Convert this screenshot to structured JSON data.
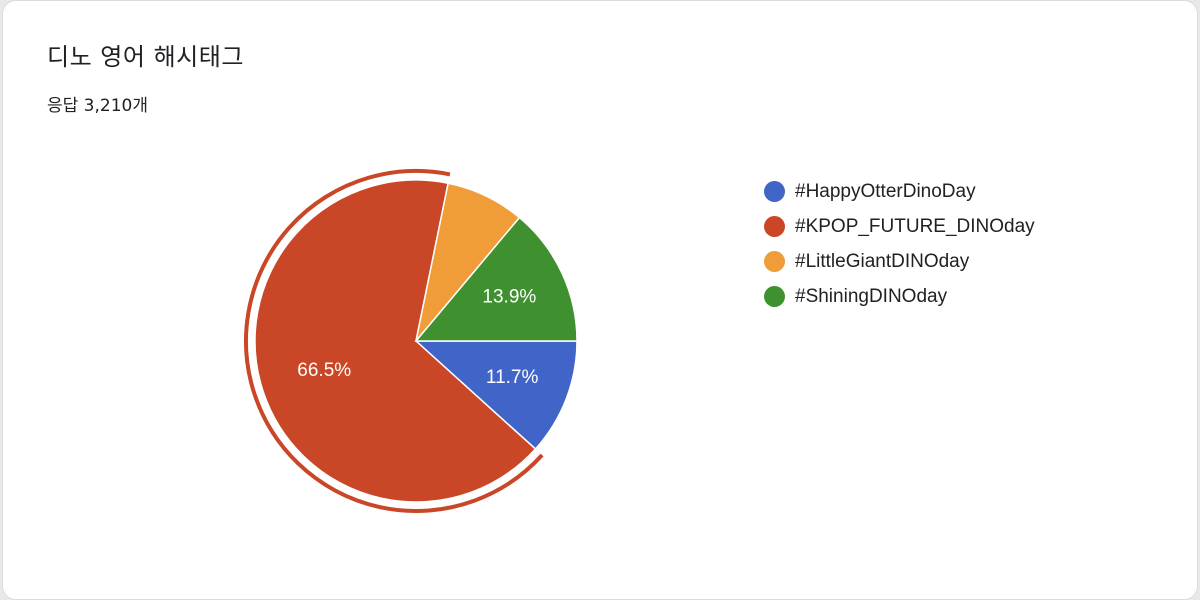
{
  "header": {
    "title": "디노 영어 해시태그",
    "response_count": "응답 3,210개"
  },
  "chart_data": {
    "type": "pie",
    "categories": [
      "#HappyOtterDinoDay",
      "#KPOP_FUTURE_DINOday",
      "#LittleGiantDINOday",
      "#ShiningDINOday"
    ],
    "values": [
      11.7,
      66.5,
      7.9,
      13.9
    ],
    "labels": [
      "11.7%",
      "66.5%",
      "",
      "13.9%"
    ],
    "colors": [
      "#4064c8",
      "#c94727",
      "#f09c38",
      "#3f9130"
    ],
    "highlighted": "#KPOP_FUTURE_DINOday",
    "legend_position": "right"
  }
}
